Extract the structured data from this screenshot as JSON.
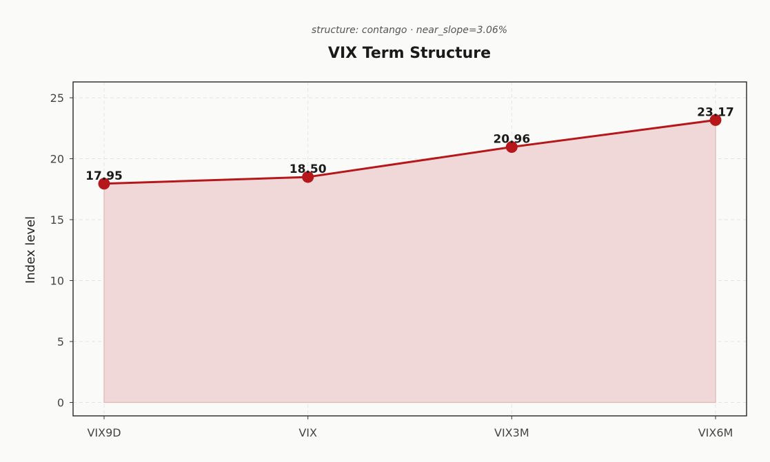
{
  "chart_data": {
    "type": "area",
    "title": "VIX Term Structure",
    "subtitle": "structure: contango · near_slope=3.06%",
    "xlabel": "",
    "ylabel": "Index level",
    "categories": [
      "VIX9D",
      "VIX",
      "VIX3M",
      "VIX6M"
    ],
    "values": [
      17.95,
      18.5,
      20.96,
      23.17
    ],
    "value_labels": [
      "17.95",
      "18.50",
      "20.96",
      "23.17"
    ],
    "ylim": [
      -1.1,
      26.3
    ],
    "yticks": [
      0,
      5,
      10,
      15,
      20,
      25
    ],
    "grid": true,
    "colors": {
      "line": "#b5171b",
      "marker": "#b5171b",
      "fill": "#f0d8d8",
      "fill_edge": "#e2b4b4",
      "frame": "#333333"
    }
  }
}
